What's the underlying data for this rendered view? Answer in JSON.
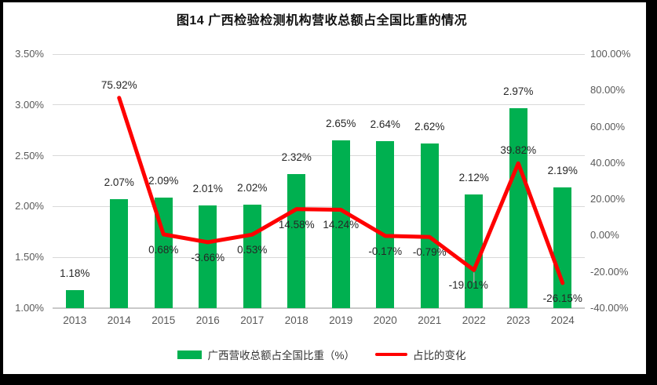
{
  "window": {
    "background": "#FFFFFF",
    "frame_color": "#000000"
  },
  "chart_data": {
    "type": "bar",
    "subtype": "combo-bar-line-dual-axis",
    "title": "图14 广西检验检测机构营收总额占全国比重的情况",
    "categories": [
      "2013",
      "2014",
      "2015",
      "2016",
      "2017",
      "2018",
      "2019",
      "2020",
      "2021",
      "2022",
      "2023",
      "2024"
    ],
    "series": [
      {
        "name": "广西营收总额占全国比重（%）",
        "chart_type": "bar",
        "axis": "left",
        "color": "#00B050",
        "values": [
          1.18,
          2.07,
          2.09,
          2.01,
          2.02,
          2.32,
          2.65,
          2.64,
          2.62,
          2.12,
          2.97,
          2.19
        ],
        "data_labels": [
          "1.18%",
          "2.07%",
          "2.09%",
          "2.01%",
          "2.02%",
          "2.32%",
          "2.65%",
          "2.64%",
          "2.62%",
          "2.12%",
          "2.97%",
          "2.19%"
        ]
      },
      {
        "name": "占比的变化",
        "chart_type": "line",
        "axis": "right",
        "color": "#FF0000",
        "values": [
          null,
          75.92,
          0.68,
          -3.66,
          0.53,
          14.58,
          14.24,
          -0.17,
          -0.79,
          -19.01,
          39.82,
          -26.15
        ],
        "data_labels": [
          null,
          "75.92%",
          "0.68%",
          "-3.66%",
          "0.53%",
          "14.58%",
          "14.24%",
          "-0.17%",
          "-0.79%",
          "-19.01%",
          "39.82%",
          "-26.15%"
        ],
        "label_positions": [
          null,
          "above",
          "below",
          "below",
          "below",
          "below",
          "below",
          "below",
          "below",
          "below-leader",
          "above",
          "below"
        ]
      }
    ],
    "left_axis": {
      "min": 1.0,
      "max": 3.5,
      "step": 0.5,
      "ticks": [
        "3.50%",
        "3.00%",
        "2.50%",
        "2.00%",
        "1.50%",
        "1.00%"
      ]
    },
    "right_axis": {
      "min": -40,
      "max": 100,
      "step": 20,
      "ticks": [
        "100.00%",
        "80.00%",
        "60.00%",
        "40.00%",
        "20.00%",
        "0.00%",
        "-20.00%",
        "-40.00%"
      ]
    },
    "grid": {
      "horizontal": true,
      "color": "#D9D9D9",
      "axis_line_color": "#C9C9C9",
      "leader_line_color": "#A6A6A6"
    },
    "legend": {
      "position": "bottom",
      "items": [
        {
          "label": "广西营收总额占全国比重（%）",
          "color": "#00B050",
          "marker": "bar"
        },
        {
          "label": "占比的变化",
          "color": "#FF0000",
          "marker": "line"
        }
      ]
    }
  }
}
